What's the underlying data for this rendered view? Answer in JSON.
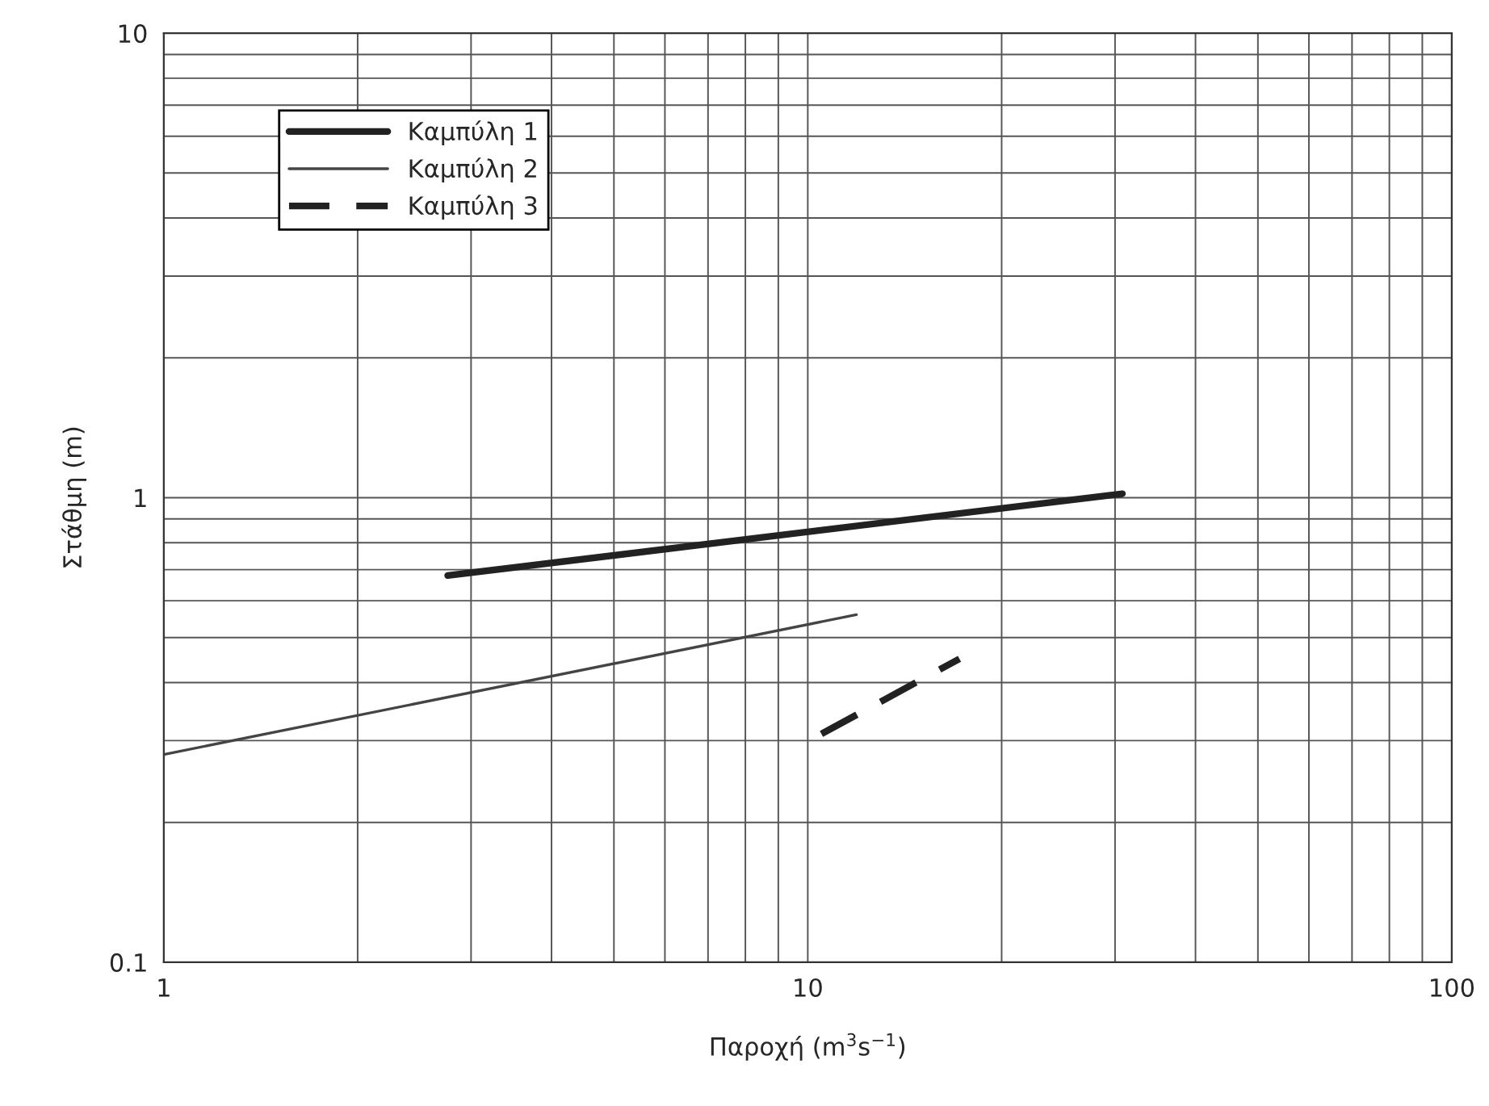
{
  "chart_data": {
    "type": "line",
    "xlabel": "Παροχή (m$^{3}$s$^{−1}$)",
    "ylabel": "Στάθμη (m)",
    "log": "xy",
    "xlim": [
      1,
      100
    ],
    "ylim": [
      0.1,
      10
    ],
    "xticks": [
      1,
      10,
      100
    ],
    "yticks": [
      0.1,
      1,
      10
    ],
    "grid": true,
    "legend": "top left",
    "marker": "none",
    "series": [
      {
        "name": "Καμπύλη 1",
        "color": "#222222",
        "line_style": "solid",
        "x": [
          2.76,
          30.8
        ],
        "values": [
          0.68,
          1.02
        ]
      },
      {
        "name": "Καμπύλη 2",
        "color": "#444444",
        "line_style": "solid",
        "x": [
          1,
          11.9
        ],
        "values": [
          0.28,
          0.56
        ]
      },
      {
        "name": "Καμπύλη 3",
        "color": "#222222",
        "line_style": "dashed",
        "x": [
          10.5,
          17.2
        ],
        "values": [
          0.31,
          0.45
        ]
      }
    ]
  }
}
